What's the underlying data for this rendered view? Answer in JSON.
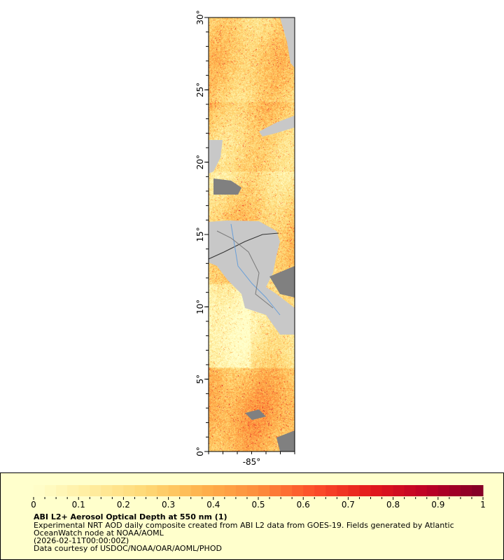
{
  "map": {
    "lat_range": [
      0,
      30
    ],
    "lon_range": [
      -88,
      -82
    ],
    "lat_tick_labels": [
      "0°",
      "5°",
      "10°",
      "15°",
      "20°",
      "25°",
      "30°"
    ],
    "lat_tick_values": [
      0,
      5,
      10,
      15,
      20,
      25,
      30
    ],
    "lon_tick_labels": [
      "-85°"
    ],
    "lon_tick_values": [
      -85
    ],
    "colors": {
      "land": "#c8c8c8",
      "no_data": "#808080",
      "border": "#333333",
      "river": "#6a9fd8",
      "state_line": "#7a7a7a"
    }
  },
  "legend": {
    "colorbar": {
      "min": 0,
      "max": 1,
      "tick_labels": [
        "0",
        "0.1",
        "0.2",
        "0.3",
        "0.4",
        "0.5",
        "0.6",
        "0.7",
        "0.8",
        "0.9",
        "1"
      ],
      "colors": [
        "#ffffcc",
        "#ffeda0",
        "#fed976",
        "#feb24c",
        "#fd8d3c",
        "#fc4e2a",
        "#e31a1c",
        "#bd0026",
        "#800026"
      ]
    },
    "title": "ABI L2+ Aerosol Optical Depth at 550 nm (1)",
    "line1": "Experimental NRT AOD daily composite created from ABI L2 data from GOES-19. Fields generated by Atlantic",
    "line2": "OceanWatch node at NOAA/AOML",
    "line3": "(2026-02-11T00:00:00Z)",
    "line4": "Data courtesy of USDOC/NOAA/OAR/AOML/PHOD"
  }
}
